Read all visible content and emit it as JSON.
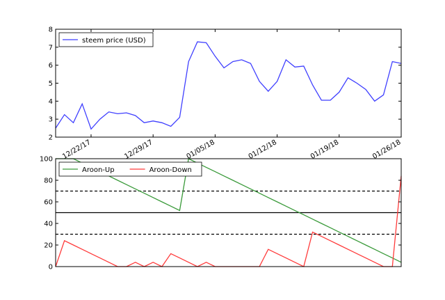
{
  "chart_data": [
    {
      "type": "line",
      "x": [
        "2017-12-18",
        "2017-12-19",
        "2017-12-20",
        "2017-12-21",
        "2017-12-22",
        "2017-12-23",
        "2017-12-24",
        "2017-12-25",
        "2017-12-26",
        "2017-12-27",
        "2017-12-28",
        "2017-12-29",
        "2017-12-30",
        "2017-12-31",
        "2018-01-01",
        "2018-01-02",
        "2018-01-03",
        "2018-01-04",
        "2018-01-05",
        "2018-01-06",
        "2018-01-07",
        "2018-01-08",
        "2018-01-09",
        "2018-01-10",
        "2018-01-11",
        "2018-01-12",
        "2018-01-13",
        "2018-01-14",
        "2018-01-15",
        "2018-01-16",
        "2018-01-17",
        "2018-01-18",
        "2018-01-19",
        "2018-01-20",
        "2018-01-21",
        "2018-01-22",
        "2018-01-23",
        "2018-01-24",
        "2018-01-25",
        "2018-01-26"
      ],
      "series": [
        {
          "name": "steem price (USD)",
          "color": "#3f3fff",
          "values": [
            2.5,
            3.25,
            2.8,
            3.85,
            2.45,
            3.0,
            3.4,
            3.3,
            3.35,
            3.2,
            2.8,
            2.9,
            2.8,
            2.6,
            3.1,
            6.2,
            7.3,
            7.25,
            6.5,
            5.85,
            6.2,
            6.3,
            6.1,
            5.1,
            4.55,
            5.1,
            6.3,
            5.9,
            5.95,
            4.9,
            4.05,
            4.05,
            4.5,
            5.3,
            5.0,
            4.65,
            4.0,
            4.35,
            6.2,
            6.1
          ]
        }
      ],
      "xlim": [
        "2017-12-18",
        "2018-01-26"
      ],
      "xticks": [
        {
          "value": "2017-12-22",
          "label": "12/22/17"
        },
        {
          "value": "2017-12-29",
          "label": "12/29/17"
        },
        {
          "value": "2018-01-05",
          "label": "01/05/18"
        },
        {
          "value": "2018-01-12",
          "label": "01/12/18"
        },
        {
          "value": "2018-01-19",
          "label": "01/19/18"
        },
        {
          "value": "2018-01-26",
          "label": "01/26/18"
        }
      ],
      "ylim": [
        2,
        8
      ],
      "yticks": [
        2,
        3,
        4,
        5,
        6,
        7,
        8
      ],
      "legend": "upper left"
    },
    {
      "type": "line",
      "x": [
        "2017-12-18",
        "2017-12-19",
        "2017-12-20",
        "2017-12-21",
        "2017-12-22",
        "2017-12-23",
        "2017-12-24",
        "2017-12-25",
        "2017-12-26",
        "2017-12-27",
        "2017-12-28",
        "2017-12-29",
        "2017-12-30",
        "2017-12-31",
        "2018-01-01",
        "2018-01-02",
        "2018-01-03",
        "2018-01-04",
        "2018-01-05",
        "2018-01-06",
        "2018-01-07",
        "2018-01-08",
        "2018-01-09",
        "2018-01-10",
        "2018-01-11",
        "2018-01-12",
        "2018-01-13",
        "2018-01-14",
        "2018-01-15",
        "2018-01-16",
        "2018-01-17",
        "2018-01-18",
        "2018-01-19",
        "2018-01-20",
        "2018-01-21",
        "2018-01-22",
        "2018-01-23",
        "2018-01-24",
        "2018-01-25",
        "2018-01-26"
      ],
      "series": [
        {
          "name": "Aroon-Up",
          "color": "#3a9a3a",
          "values": [
            100,
            100,
            100,
            96,
            92,
            88,
            84,
            80,
            76,
            72,
            68,
            64,
            60,
            56,
            52,
            100,
            96,
            92,
            88,
            84,
            80,
            76,
            72,
            68,
            64,
            60,
            56,
            52,
            48,
            44,
            40,
            36,
            32,
            28,
            24,
            20,
            16,
            12,
            8,
            4
          ]
        },
        {
          "name": "Aroon-Down",
          "color": "#ff3a3a",
          "values": [
            0,
            24,
            20,
            16,
            12,
            8,
            4,
            0,
            0,
            4,
            0,
            4,
            0,
            12,
            8,
            4,
            0,
            4,
            0,
            0,
            0,
            0,
            0,
            0,
            16,
            12,
            8,
            4,
            0,
            32,
            28,
            24,
            20,
            16,
            12,
            8,
            4,
            0,
            0,
            84
          ]
        }
      ],
      "xlim": [
        "2017-12-18",
        "2018-01-26"
      ],
      "ylim": [
        0,
        100
      ],
      "yticks": [
        0,
        20,
        40,
        60,
        80,
        100
      ],
      "hlines": [
        {
          "value": 30,
          "style": "dashed"
        },
        {
          "value": 50,
          "style": "solid"
        },
        {
          "value": 70,
          "style": "dashed"
        }
      ],
      "legend": "upper left"
    }
  ]
}
